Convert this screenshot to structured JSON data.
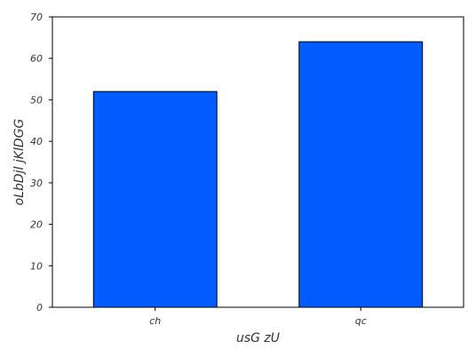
{
  "chart_data": {
    "type": "bar",
    "categories": [
      "ch",
      "qc"
    ],
    "values": [
      52,
      64
    ],
    "title": "",
    "xlabel": "usG zU",
    "ylabel": "oLbDjl jKlDGG",
    "ylim": [
      0,
      70
    ],
    "yticks": [
      0,
      10,
      20,
      30,
      40,
      50,
      60,
      70
    ],
    "grid": false,
    "legend": "none",
    "bar_color": "#005cff",
    "bar_edge_color": "#000000"
  }
}
